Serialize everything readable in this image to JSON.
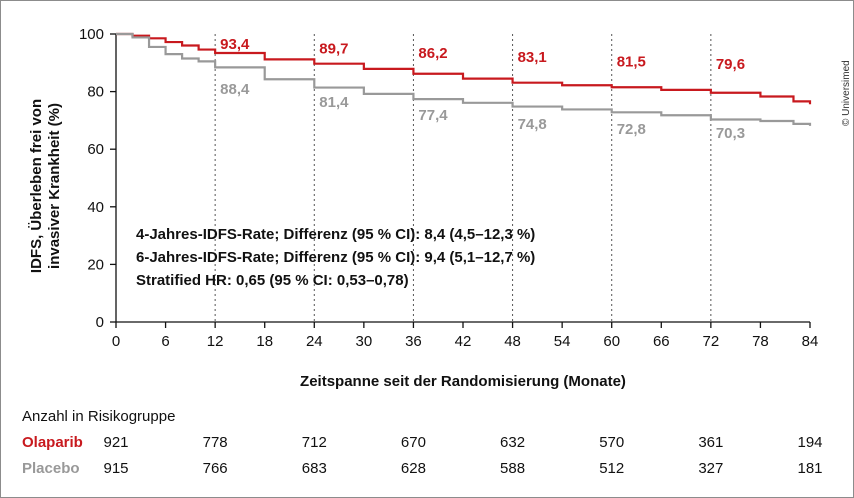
{
  "credit": "© Universimed",
  "chart_data": {
    "type": "line",
    "xlabel": "Zeitspanne seit der Randomisierung (Monate)",
    "ylabel_line1": "IDFS, Überleben frei von",
    "ylabel_line2": "invasiver Krankheit (%)",
    "xlim": [
      0,
      84
    ],
    "ylim": [
      0,
      100
    ],
    "xticks": [
      "0",
      "6",
      "12",
      "18",
      "24",
      "30",
      "36",
      "42",
      "48",
      "54",
      "60",
      "66",
      "72",
      "78",
      "84"
    ],
    "yticks": [
      "0",
      "20",
      "40",
      "60",
      "80",
      "100"
    ],
    "marker_months": [
      12,
      24,
      36,
      48,
      60,
      72
    ],
    "colors": {
      "olaparib": "#c8191e",
      "placebo": "#999999"
    },
    "series": [
      {
        "name": "Olaparib",
        "x": [
          0,
          2,
          4,
          6,
          8,
          10,
          12,
          18,
          24,
          30,
          36,
          42,
          48,
          54,
          60,
          66,
          72,
          78,
          82,
          84
        ],
        "values": [
          100,
          99.4,
          98.5,
          97.2,
          96.0,
          94.6,
          93.4,
          91.2,
          89.7,
          87.9,
          86.2,
          84.5,
          83.1,
          82.2,
          81.5,
          80.6,
          79.6,
          78.3,
          76.6,
          75.6
        ],
        "labels": [
          "93,4",
          "89,7",
          "86,2",
          "83,1",
          "81,5",
          "79,6"
        ]
      },
      {
        "name": "Placebo",
        "x": [
          0,
          2,
          4,
          6,
          8,
          10,
          12,
          18,
          24,
          30,
          36,
          42,
          48,
          54,
          60,
          66,
          72,
          78,
          82,
          84
        ],
        "values": [
          100,
          98.8,
          95.5,
          93.0,
          91.5,
          90.5,
          88.4,
          84.3,
          81.4,
          79.2,
          77.4,
          76.1,
          74.8,
          73.8,
          72.8,
          71.8,
          70.3,
          69.8,
          68.8,
          68.1
        ],
        "labels": [
          "88,4",
          "81,4",
          "77,4",
          "74,8",
          "72,8",
          "70,3"
        ]
      }
    ],
    "annotations": [
      "4-Jahres-IDFS-Rate; Differenz (95 % CI): 8,4 (4,5–12,3 %)",
      "6-Jahres-IDFS-Rate; Differenz (95 % CI): 9,4 (5,1–12,7 %)",
      "Stratified HR: 0,65 (95 % CI: 0,53–0,78)"
    ]
  },
  "risk_table": {
    "title": "Anzahl in Risikogruppe",
    "olaparib_label": "Olaparib",
    "placebo_label": "Placebo",
    "olaparib_counts": [
      "921",
      "778",
      "712",
      "670",
      "632",
      "570",
      "361",
      "194"
    ],
    "placebo_counts": [
      "915",
      "766",
      "683",
      "628",
      "588",
      "512",
      "327",
      "181"
    ]
  }
}
